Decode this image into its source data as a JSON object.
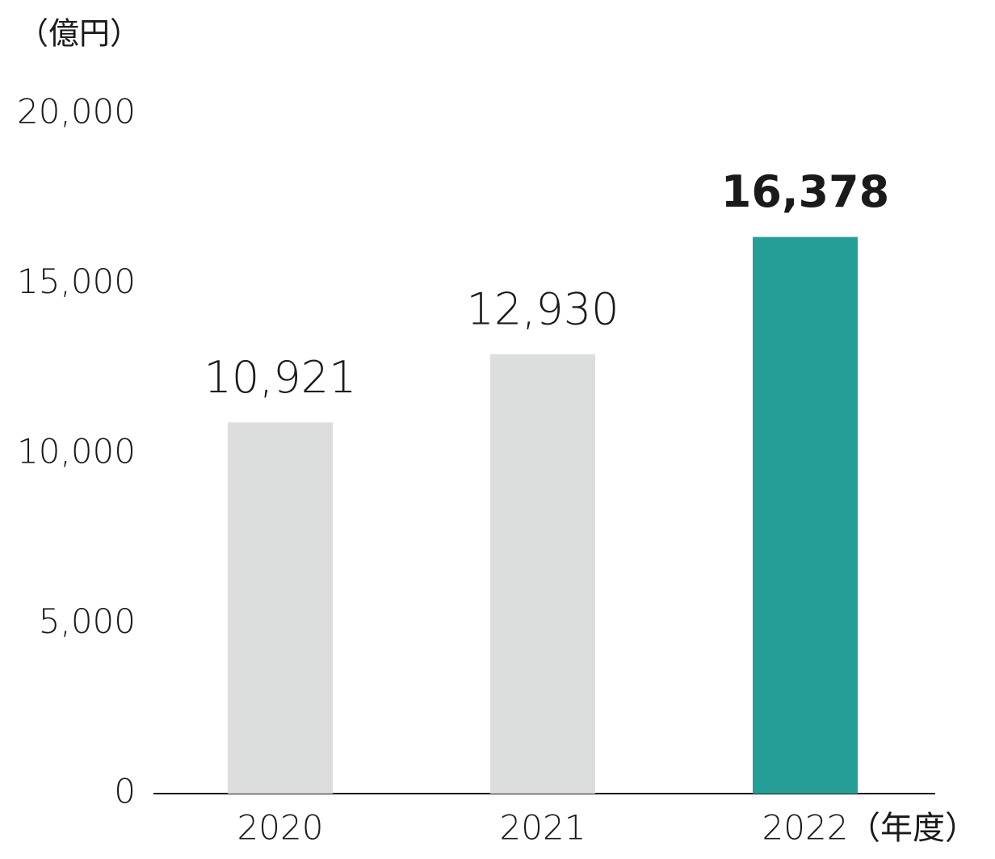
{
  "chart_data": {
    "type": "bar",
    "y_axis_label": "（億円）",
    "x_axis_label": "（年度）",
    "categories": [
      "2020",
      "2021",
      "2022"
    ],
    "values": [
      10921,
      12930,
      16378
    ],
    "value_labels": [
      "10,921",
      "12,930",
      "16,378"
    ],
    "colors": [
      "#dcdddd",
      "#dcdddd",
      "#259e97"
    ],
    "value_label_weights": [
      "normal",
      "normal",
      "bold"
    ],
    "ylim": [
      0,
      20000
    ],
    "yticks": [
      0,
      {
        "value": 5000,
        "label": "5,000"
      },
      {
        "value": 10000,
        "label": "10,000"
      },
      {
        "value": 15000,
        "label": "15,000"
      },
      {
        "value": 20000,
        "label": "20,000"
      }
    ],
    "grid": false
  }
}
